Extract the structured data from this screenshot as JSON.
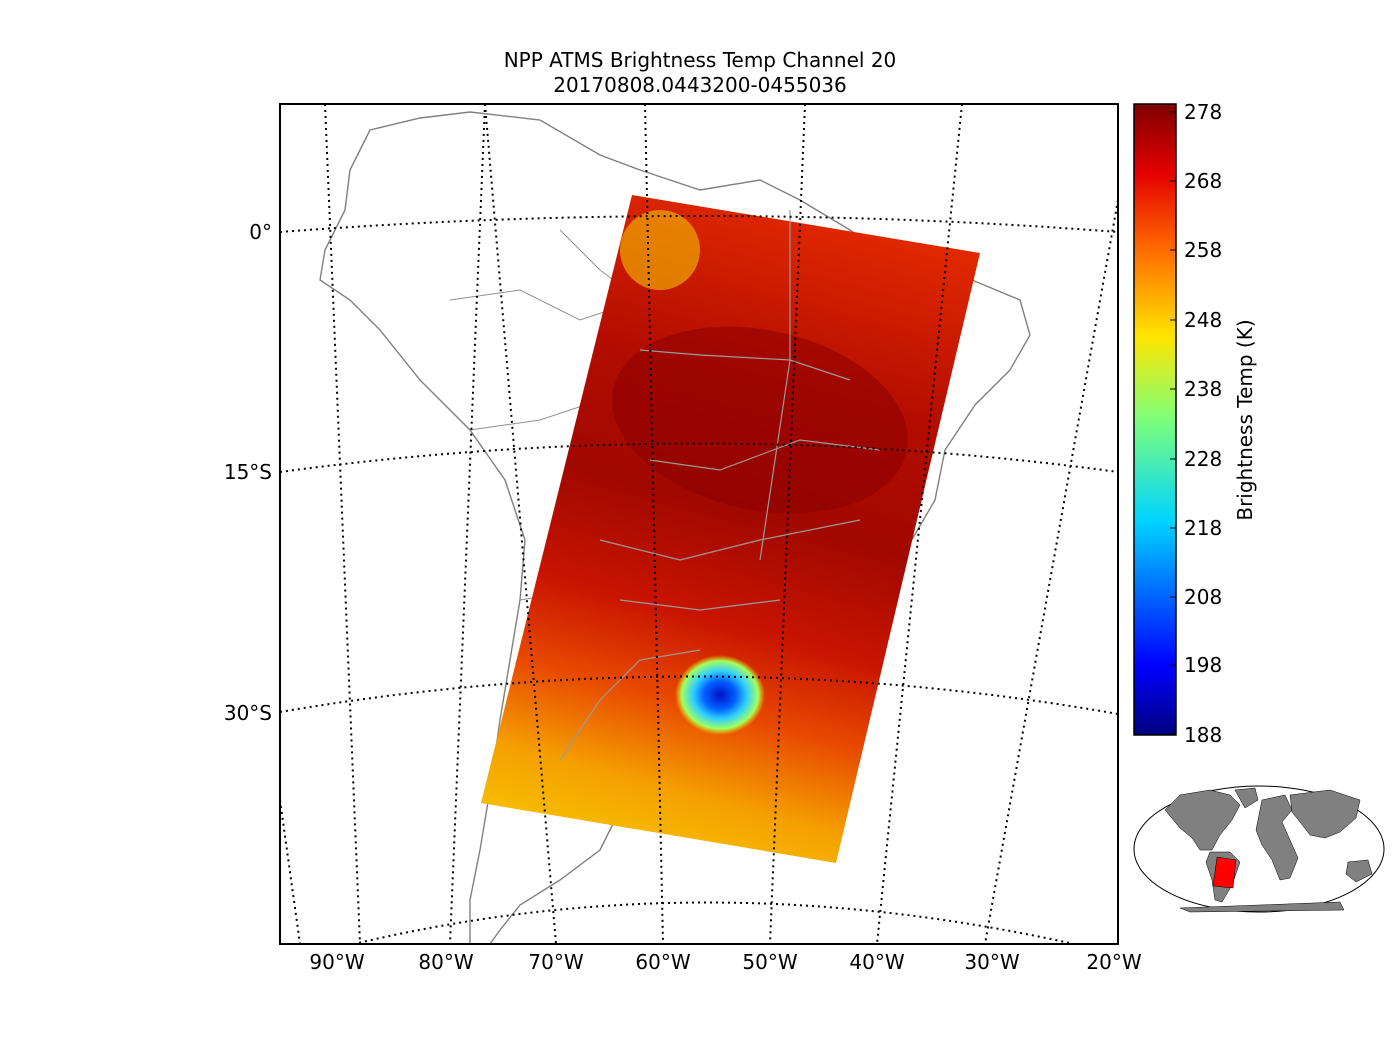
{
  "title": "NPP ATMS Brightness Temp Channel 20",
  "subtitle": "20170808.0443200-0455036",
  "map": {
    "lat_labels": [
      "0°",
      "15°S",
      "30°S"
    ],
    "lon_labels": [
      "90°W",
      "80°W",
      "70°W",
      "60°W",
      "50°W",
      "40°W",
      "30°W",
      "20°W"
    ]
  },
  "colorbar": {
    "label": "Brightness Temp (K)",
    "ticks": [
      "278",
      "268",
      "258",
      "248",
      "238",
      "228",
      "218",
      "208",
      "198",
      "188"
    ],
    "range": [
      188,
      278
    ],
    "colormap": "jet"
  },
  "colors": {
    "coastline": "#808080",
    "swath_warm": "#c81e00",
    "swath_cold": "#0000c8",
    "inset_land": "#808080",
    "inset_highlight": "#ff0000"
  }
}
